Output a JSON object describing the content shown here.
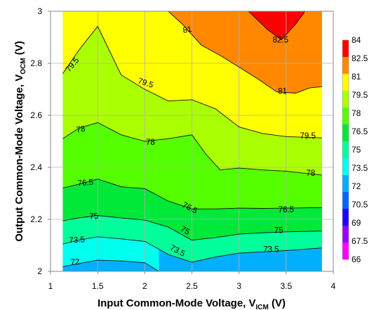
{
  "chart_data": {
    "type": "filled-contour",
    "title": "",
    "xlabel": "Input Common-Mode Voltage, V",
    "xlabel_sub": "ICM",
    "xlabel_unit": " (V)",
    "ylabel": "Output Common-Mode Voltage, V",
    "ylabel_sub": "OCM",
    "ylabel_unit": " (V)",
    "xlim": [
      1,
      4
    ],
    "ylim": [
      2,
      3
    ],
    "x_ticks": [
      "1",
      "1.5",
      "2",
      "2.5",
      "3",
      "3.5",
      "4"
    ],
    "y_ticks": [
      "2",
      "2.2",
      "2.4",
      "2.6",
      "2.8",
      "3"
    ],
    "grid": true,
    "data_x_range": [
      1.13,
      3.88
    ],
    "data_y_range": [
      2.0,
      3.0
    ],
    "levels": [
      66,
      67.5,
      69,
      70.5,
      72,
      73.5,
      75,
      76.5,
      78,
      79.5,
      81,
      82.5,
      84
    ],
    "level_labels": [
      "66",
      "67.5",
      "69",
      "70.5",
      "72",
      "73.5",
      "75",
      "76.5",
      "78",
      "79.5",
      "81",
      "82.5",
      "84"
    ],
    "band_colors": [
      "#ff00ff",
      "#9900ff",
      "#2200ff",
      "#0066ff",
      "#00b0ff",
      "#00ffee",
      "#00ff9a",
      "#00e838",
      "#55ff00",
      "#aaff00",
      "#ffff00",
      "#ff8800",
      "#ff0000"
    ],
    "contours": [
      {
        "level": 72.0,
        "label": "72",
        "points": [
          [
            1.13,
            2.018
          ],
          [
            1.3,
            2.03
          ],
          [
            1.5,
            2.043
          ],
          [
            1.75,
            2.04
          ],
          [
            2.0,
            2.033
          ],
          [
            2.15,
            2.0
          ]
        ]
      },
      {
        "level": 73.5,
        "label": "73.5",
        "points": [
          [
            1.13,
            2.105
          ],
          [
            1.3,
            2.12
          ],
          [
            1.5,
            2.133
          ],
          [
            1.75,
            2.125
          ],
          [
            2.0,
            2.115
          ],
          [
            2.25,
            2.065
          ],
          [
            2.5,
            2.035
          ],
          [
            2.75,
            2.055
          ],
          [
            3.0,
            2.07
          ],
          [
            3.25,
            2.075
          ],
          [
            3.5,
            2.08
          ],
          [
            3.88,
            2.09
          ]
        ]
      },
      {
        "level": 75.0,
        "label": "75",
        "points": [
          [
            1.13,
            2.195
          ],
          [
            1.3,
            2.205
          ],
          [
            1.5,
            2.215
          ],
          [
            1.75,
            2.205
          ],
          [
            2.0,
            2.197
          ],
          [
            2.25,
            2.17
          ],
          [
            2.5,
            2.12
          ],
          [
            2.75,
            2.13
          ],
          [
            3.0,
            2.143
          ],
          [
            3.25,
            2.148
          ],
          [
            3.5,
            2.152
          ],
          [
            3.88,
            2.155
          ]
        ]
      },
      {
        "level": 76.5,
        "label": "76.5",
        "points": [
          [
            1.13,
            2.32
          ],
          [
            1.3,
            2.335
          ],
          [
            1.5,
            2.355
          ],
          [
            1.75,
            2.325
          ],
          [
            2.0,
            2.318
          ],
          [
            2.25,
            2.27
          ],
          [
            2.5,
            2.24
          ],
          [
            2.75,
            2.24
          ],
          [
            3.0,
            2.243
          ],
          [
            3.25,
            2.242
          ],
          [
            3.5,
            2.243
          ],
          [
            3.88,
            2.245
          ]
        ]
      },
      {
        "level": 78.0,
        "label": "78",
        "points": [
          [
            1.13,
            2.51
          ],
          [
            1.3,
            2.55
          ],
          [
            1.5,
            2.572
          ],
          [
            1.75,
            2.525
          ],
          [
            2.0,
            2.5
          ],
          [
            2.25,
            2.51
          ],
          [
            2.5,
            2.525
          ],
          [
            2.65,
            2.45
          ],
          [
            2.8,
            2.39
          ],
          [
            3.0,
            2.397
          ],
          [
            3.25,
            2.39
          ],
          [
            3.5,
            2.385
          ],
          [
            3.88,
            2.37
          ]
        ]
      },
      {
        "level": 79.5,
        "label": "79.5",
        "points": [
          [
            1.13,
            2.76
          ],
          [
            1.3,
            2.85
          ],
          [
            1.5,
            2.942
          ],
          [
            1.75,
            2.755
          ],
          [
            2.0,
            2.7
          ],
          [
            2.25,
            2.655
          ],
          [
            2.5,
            2.66
          ],
          [
            2.75,
            2.625
          ],
          [
            3.0,
            2.555
          ],
          [
            3.25,
            2.53
          ],
          [
            3.5,
            2.518
          ],
          [
            3.88,
            2.513
          ]
        ]
      },
      {
        "level": 81.0,
        "label": "81",
        "points": [
          [
            2.25,
            3.0
          ],
          [
            2.4,
            2.95
          ],
          [
            2.6,
            2.87
          ],
          [
            2.8,
            2.83
          ],
          [
            3.0,
            2.785
          ],
          [
            3.2,
            2.74
          ],
          [
            3.4,
            2.69
          ],
          [
            3.6,
            2.685
          ],
          [
            3.75,
            2.705
          ],
          [
            3.88,
            2.71
          ]
        ]
      },
      {
        "level": 82.5,
        "label": "82.5",
        "points": [
          [
            3.1,
            3.0
          ],
          [
            3.3,
            2.93
          ],
          [
            3.45,
            2.89
          ],
          [
            3.6,
            2.95
          ],
          [
            3.7,
            3.0
          ]
        ]
      }
    ],
    "contour_labels": [
      {
        "text": "72",
        "x": 1.26,
        "y": 2.037,
        "angle": -3
      },
      {
        "text": "73.5",
        "x": 1.28,
        "y": 2.122,
        "angle": -3
      },
      {
        "text": "73.5",
        "x": 2.35,
        "y": 2.08,
        "angle": 28
      },
      {
        "text": "73.5",
        "x": 3.34,
        "y": 2.085,
        "angle": 0
      },
      {
        "text": "75",
        "x": 1.46,
        "y": 2.213,
        "angle": -3
      },
      {
        "text": "75",
        "x": 2.43,
        "y": 2.158,
        "angle": 30
      },
      {
        "text": "75",
        "x": 3.42,
        "y": 2.158,
        "angle": 0
      },
      {
        "text": "76.5",
        "x": 1.37,
        "y": 2.342,
        "angle": -4
      },
      {
        "text": "76.5",
        "x": 2.48,
        "y": 2.245,
        "angle": 28
      },
      {
        "text": "76.5",
        "x": 3.5,
        "y": 2.238,
        "angle": 0
      },
      {
        "text": "78",
        "x": 1.32,
        "y": 2.547,
        "angle": -8
      },
      {
        "text": "78",
        "x": 2.06,
        "y": 2.497,
        "angle": 0
      },
      {
        "text": "78",
        "x": 3.76,
        "y": 2.378,
        "angle": 0
      },
      {
        "text": "79.5",
        "x": 1.23,
        "y": 2.795,
        "angle": -50
      },
      {
        "text": "79.5",
        "x": 2.01,
        "y": 2.725,
        "angle": 18
      },
      {
        "text": "79.5",
        "x": 3.73,
        "y": 2.521,
        "angle": 0
      },
      {
        "text": "81",
        "x": 2.45,
        "y": 2.93,
        "angle": -10
      },
      {
        "text": "81",
        "x": 3.46,
        "y": 2.693,
        "angle": 0
      },
      {
        "text": "82.5",
        "x": 3.44,
        "y": 2.89,
        "angle": 0
      }
    ]
  }
}
